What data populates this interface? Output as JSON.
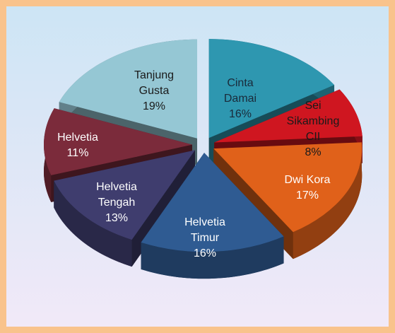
{
  "chart_data": {
    "type": "pie",
    "categories": [
      "Cinta Damai",
      "Sei Sikambing CII",
      "Dwi Kora",
      "Helvetia Timur",
      "Helvetia Tengah",
      "Helvetia",
      "Tanjung Gusta"
    ],
    "values": [
      16,
      8,
      17,
      16,
      13,
      11,
      19
    ],
    "value_labels": [
      "16%",
      "8%",
      "17%",
      "16%",
      "13%",
      "11%",
      "19%"
    ],
    "colors": [
      "#2e97b0",
      "#cf1620",
      "#e0611a",
      "#2f5b92",
      "#3f3d6e",
      "#7b2b3b",
      "#95c7d4"
    ]
  }
}
